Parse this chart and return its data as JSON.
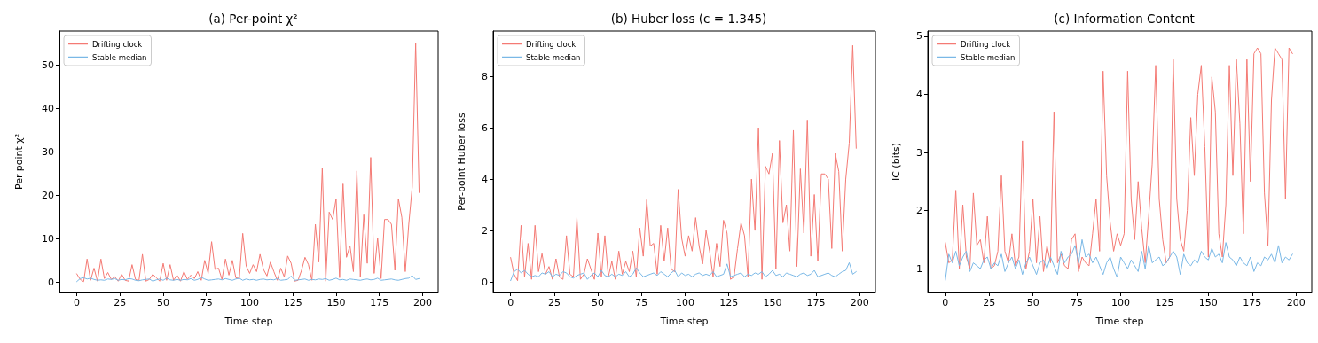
{
  "chart_data": [
    {
      "type": "line",
      "title": "(a) Per-point χ²",
      "xlabel": "Time step",
      "ylabel": "Per-point χ²",
      "xlim": [
        -10,
        209
      ],
      "xticks": [
        0,
        25,
        50,
        75,
        100,
        125,
        150,
        175,
        200
      ],
      "ylim": [
        -2.4,
        57.8
      ],
      "yticks": [
        0,
        10,
        20,
        30,
        40,
        50
      ],
      "legend": "top left",
      "grid": false,
      "line_style": "solid",
      "marker": "none",
      "x": [
        0,
        2,
        4,
        6,
        8,
        10,
        12,
        14,
        16,
        18,
        20,
        22,
        24,
        26,
        28,
        30,
        32,
        34,
        36,
        38,
        40,
        42,
        44,
        46,
        48,
        50,
        52,
        54,
        56,
        58,
        60,
        62,
        64,
        66,
        68,
        70,
        72,
        74,
        76,
        78,
        80,
        82,
        84,
        86,
        88,
        90,
        92,
        94,
        96,
        98,
        100,
        102,
        104,
        106,
        108,
        110,
        112,
        114,
        116,
        118,
        120,
        122,
        124,
        126,
        128,
        130,
        132,
        134,
        136,
        138,
        140,
        142,
        144,
        146,
        148,
        150,
        152,
        154,
        156,
        158,
        160,
        162,
        164,
        166,
        168,
        170,
        172,
        174,
        176,
        178,
        180,
        182,
        184,
        186,
        188,
        190,
        192,
        194,
        196,
        198
      ],
      "series": [
        {
          "name": "Drifting clock",
          "color": "#f47a74",
          "values": [
            1.9,
            0.6,
            0.1,
            5.3,
            0.4,
            3.2,
            0.2,
            5.3,
            0.8,
            2.2,
            0.6,
            1.2,
            0.2,
            1.8,
            0.4,
            0.2,
            4.0,
            0.6,
            0.4,
            6.4,
            0.2,
            0.6,
            1.8,
            1.0,
            0.2,
            4.3,
            0.4,
            4.0,
            0.4,
            1.6,
            0.2,
            2.4,
            0.6,
            1.6,
            0.8,
            2.4,
            0.4,
            5.0,
            2.0,
            9.3,
            2.9,
            3.2,
            0.6,
            5.3,
            1.6,
            5.0,
            1.0,
            0.8,
            11.2,
            3.7,
            2.0,
            4.0,
            2.4,
            6.4,
            2.9,
            1.4,
            4.6,
            2.4,
            0.4,
            3.2,
            1.2,
            6.0,
            4.3,
            0.2,
            0.4,
            2.7,
            5.7,
            4.0,
            0.4,
            13.3,
            4.6,
            26.3,
            0.2,
            16.1,
            14.4,
            19.2,
            1.0,
            22.6,
            5.7,
            8.4,
            2.4,
            25.6,
            1.2,
            15.5,
            4.3,
            28.7,
            2.0,
            10.2,
            0.8,
            14.4,
            14.4,
            13.3,
            2.7,
            19.2,
            14.9,
            2.4,
            13.3,
            21.9,
            55,
            20.6
          ]
        },
        {
          "name": "Stable median",
          "color": "#7ab8e6",
          "values": [
            0.1,
            0.8,
            1.0,
            0.7,
            0.9,
            0.6,
            0.4,
            0.5,
            0.4,
            0.7,
            0.6,
            0.8,
            0.4,
            0.6,
            0.5,
            0.8,
            0.7,
            0.4,
            0.3,
            0.5,
            0.6,
            0.7,
            0.2,
            0.5,
            0.7,
            0.4,
            0.9,
            0.5,
            0.4,
            0.6,
            0.4,
            0.6,
            0.5,
            0.8,
            0.4,
            0.6,
            1.1,
            0.7,
            0.4,
            0.5,
            0.6,
            0.7,
            0.5,
            0.8,
            0.6,
            0.4,
            0.7,
            0.9,
            0.4,
            0.7,
            0.5,
            0.6,
            0.4,
            0.6,
            0.7,
            0.5,
            0.6,
            0.5,
            0.8,
            0.4,
            0.5,
            0.6,
            1.4,
            0.4,
            0.5,
            0.6,
            0.7,
            0.4,
            0.6,
            0.5,
            0.7,
            0.6,
            0.8,
            0.4,
            0.6,
            0.9,
            0.5,
            0.6,
            0.4,
            0.7,
            0.6,
            0.5,
            0.4,
            0.6,
            0.7,
            0.5,
            0.6,
            0.9,
            0.4,
            0.5,
            0.6,
            0.7,
            0.5,
            0.4,
            0.6,
            0.8,
            0.9,
            1.5,
            0.6,
            0.8
          ]
        }
      ]
    },
    {
      "type": "line",
      "title": "(b) Huber loss (c = 1.345)",
      "xlabel": "Time step",
      "ylabel": "Per-point Huber loss",
      "xlim": [
        -10,
        209
      ],
      "xticks": [
        0,
        25,
        50,
        75,
        100,
        125,
        150,
        175,
        200
      ],
      "ylim": [
        -0.41,
        9.76
      ],
      "yticks": [
        0,
        2,
        4,
        6,
        8
      ],
      "legend": "top left",
      "grid": false,
      "line_style": "solid",
      "marker": "none",
      "x": [
        0,
        2,
        4,
        6,
        8,
        10,
        12,
        14,
        16,
        18,
        20,
        22,
        24,
        26,
        28,
        30,
        32,
        34,
        36,
        38,
        40,
        42,
        44,
        46,
        48,
        50,
        52,
        54,
        56,
        58,
        60,
        62,
        64,
        66,
        68,
        70,
        72,
        74,
        76,
        78,
        80,
        82,
        84,
        86,
        88,
        90,
        92,
        94,
        96,
        98,
        100,
        102,
        104,
        106,
        108,
        110,
        112,
        114,
        116,
        118,
        120,
        122,
        124,
        126,
        128,
        130,
        132,
        134,
        136,
        138,
        140,
        142,
        144,
        146,
        148,
        150,
        152,
        154,
        156,
        158,
        160,
        162,
        164,
        166,
        168,
        170,
        172,
        174,
        176,
        178,
        180,
        182,
        184,
        186,
        188,
        190,
        192,
        194,
        196,
        198
      ],
      "series": [
        {
          "name": "Drifting clock",
          "color": "#f47a74",
          "values": [
            0.95,
            0.3,
            0.05,
            2.2,
            0.2,
            1.5,
            0.1,
            2.2,
            0.4,
            1.1,
            0.3,
            0.6,
            0.1,
            0.9,
            0.2,
            0.1,
            1.8,
            0.3,
            0.2,
            2.5,
            0.1,
            0.3,
            0.9,
            0.5,
            0.1,
            1.9,
            0.2,
            1.8,
            0.2,
            0.8,
            0.1,
            1.2,
            0.3,
            0.8,
            0.4,
            1.2,
            0.2,
            2.1,
            1.0,
            3.2,
            1.4,
            1.5,
            0.3,
            2.2,
            0.8,
            2.1,
            0.5,
            0.4,
            3.6,
            1.7,
            1.0,
            1.8,
            1.2,
            2.5,
            1.4,
            0.7,
            2.0,
            1.2,
            0.2,
            1.5,
            0.6,
            2.4,
            1.9,
            0.1,
            0.2,
            1.3,
            2.3,
            1.8,
            0.2,
            4.0,
            2.0,
            6.0,
            0.1,
            4.5,
            4.2,
            5.0,
            0.5,
            5.5,
            2.3,
            3.0,
            1.2,
            5.9,
            0.6,
            4.4,
            1.9,
            6.3,
            1.0,
            3.4,
            0.8,
            4.2,
            4.2,
            4.0,
            1.3,
            5.0,
            4.3,
            1.2,
            4.0,
            5.4,
            9.2,
            5.2
          ]
        },
        {
          "name": "Stable median",
          "color": "#7ab8e6",
          "values": [
            0.05,
            0.4,
            0.5,
            0.35,
            0.45,
            0.3,
            0.2,
            0.25,
            0.2,
            0.35,
            0.3,
            0.4,
            0.2,
            0.3,
            0.25,
            0.4,
            0.35,
            0.2,
            0.15,
            0.25,
            0.3,
            0.35,
            0.1,
            0.25,
            0.35,
            0.2,
            0.45,
            0.25,
            0.2,
            0.3,
            0.2,
            0.3,
            0.25,
            0.4,
            0.2,
            0.3,
            0.55,
            0.35,
            0.2,
            0.25,
            0.3,
            0.35,
            0.25,
            0.4,
            0.3,
            0.2,
            0.35,
            0.45,
            0.2,
            0.35,
            0.25,
            0.3,
            0.2,
            0.3,
            0.35,
            0.25,
            0.3,
            0.25,
            0.4,
            0.2,
            0.25,
            0.3,
            0.7,
            0.2,
            0.25,
            0.3,
            0.35,
            0.2,
            0.3,
            0.25,
            0.35,
            0.3,
            0.4,
            0.2,
            0.3,
            0.45,
            0.25,
            0.3,
            0.2,
            0.35,
            0.3,
            0.25,
            0.2,
            0.3,
            0.35,
            0.25,
            0.3,
            0.45,
            0.2,
            0.25,
            0.3,
            0.35,
            0.25,
            0.2,
            0.3,
            0.4,
            0.45,
            0.75,
            0.3,
            0.4
          ]
        }
      ]
    },
    {
      "type": "line",
      "title": "(c) Information Content",
      "xlabel": "Time step",
      "ylabel": "IC (bits)",
      "xlim": [
        -10,
        209
      ],
      "xticks": [
        0,
        25,
        50,
        75,
        100,
        125,
        150,
        175,
        200
      ],
      "ylim": [
        0.59,
        5.09
      ],
      "yticks": [
        1,
        2,
        3,
        4,
        5
      ],
      "legend": "top left",
      "grid": false,
      "line_style": "solid",
      "marker": "none",
      "x": [
        0,
        2,
        4,
        6,
        8,
        10,
        12,
        14,
        16,
        18,
        20,
        22,
        24,
        26,
        28,
        30,
        32,
        34,
        36,
        38,
        40,
        42,
        44,
        46,
        48,
        50,
        52,
        54,
        56,
        58,
        60,
        62,
        64,
        66,
        68,
        70,
        72,
        74,
        76,
        78,
        80,
        82,
        84,
        86,
        88,
        90,
        92,
        94,
        96,
        98,
        100,
        102,
        104,
        106,
        108,
        110,
        112,
        114,
        116,
        118,
        120,
        122,
        124,
        126,
        128,
        130,
        132,
        134,
        136,
        138,
        140,
        142,
        144,
        146,
        148,
        150,
        152,
        154,
        156,
        158,
        160,
        162,
        164,
        166,
        168,
        170,
        172,
        174,
        176,
        178,
        180,
        182,
        184,
        186,
        188,
        190,
        192,
        194,
        196,
        198
      ],
      "series": [
        {
          "name": "Drifting clock",
          "color": "#f47a74",
          "values": [
            1.45,
            1.1,
            1.15,
            2.35,
            1.0,
            2.1,
            1.2,
            1.0,
            2.3,
            1.4,
            1.5,
            1.1,
            1.9,
            1.0,
            1.05,
            1.3,
            2.6,
            1.3,
            1.1,
            1.6,
            1.05,
            1.2,
            3.2,
            1.0,
            1.3,
            2.2,
            1.1,
            1.9,
            0.95,
            1.4,
            1.1,
            3.7,
            1.1,
            1.25,
            1.05,
            1.0,
            1.5,
            1.6,
            0.95,
            1.2,
            1.1,
            1.05,
            1.6,
            2.2,
            1.3,
            4.4,
            2.6,
            1.8,
            1.3,
            1.6,
            1.4,
            1.6,
            4.4,
            2.2,
            1.5,
            2.5,
            1.7,
            1.1,
            1.9,
            2.8,
            4.5,
            2.2,
            1.5,
            1.1,
            1.2,
            4.6,
            2.2,
            1.5,
            1.3,
            2.0,
            3.6,
            2.6,
            4.0,
            4.5,
            3.1,
            1.2,
            4.3,
            3.7,
            1.6,
            1.2,
            2.1,
            4.5,
            2.6,
            4.6,
            3.5,
            1.6,
            4.6,
            2.5,
            4.7,
            4.8,
            4.7,
            2.3,
            1.4,
            3.9,
            4.8,
            4.7,
            4.6,
            2.2,
            4.8,
            4.7
          ]
        },
        {
          "name": "Stable median",
          "color": "#7ab8e6",
          "values": [
            0.8,
            1.25,
            1.1,
            1.3,
            1.05,
            1.2,
            1.3,
            0.95,
            1.1,
            1.05,
            1.0,
            1.15,
            1.2,
            1.0,
            1.1,
            1.05,
            1.25,
            0.95,
            1.1,
            1.2,
            1.0,
            1.15,
            0.9,
            1.1,
            1.2,
            1.05,
            0.9,
            1.1,
            1.15,
            1.0,
            1.2,
            1.05,
            0.9,
            1.3,
            1.1,
            1.2,
            1.25,
            1.4,
            1.1,
            1.5,
            1.2,
            1.25,
            1.1,
            1.2,
            1.05,
            0.9,
            1.1,
            1.2,
            1.0,
            0.85,
            1.2,
            1.1,
            1.0,
            1.15,
            1.05,
            0.95,
            1.3,
            1.0,
            1.4,
            1.1,
            1.15,
            1.2,
            1.05,
            1.1,
            1.2,
            1.3,
            1.2,
            0.9,
            1.25,
            1.1,
            1.05,
            1.15,
            1.1,
            1.3,
            1.2,
            1.15,
            1.35,
            1.2,
            1.25,
            1.1,
            1.45,
            1.2,
            1.15,
            1.05,
            1.2,
            1.1,
            1.05,
            1.2,
            0.95,
            1.1,
            1.05,
            1.2,
            1.15,
            1.25,
            1.1,
            1.4,
            1.1,
            1.2,
            1.15,
            1.25
          ]
        }
      ]
    }
  ]
}
